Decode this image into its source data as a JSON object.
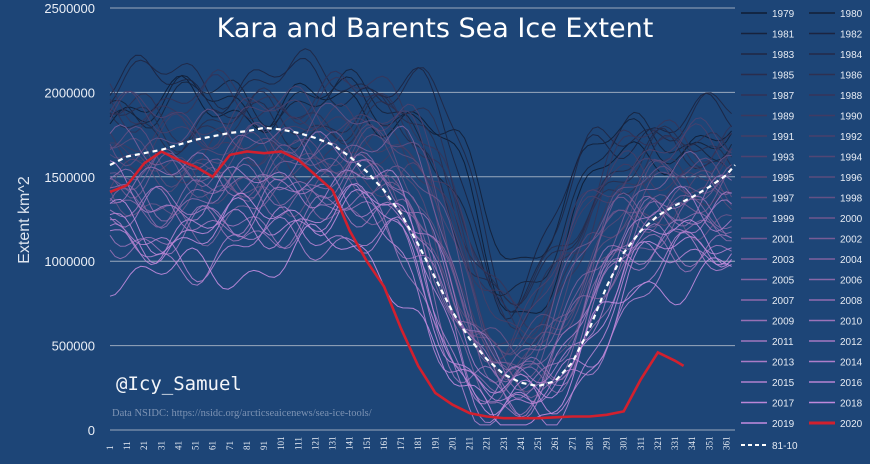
{
  "chart_data": {
    "type": "line",
    "title": "Kara and Barents Sea Ice Extent",
    "ylabel": "Extent km^2",
    "xlabel": "",
    "ylim": [
      0,
      2500000
    ],
    "yticks": [
      "0",
      "500000",
      "1000000",
      "1500000",
      "2000000",
      "2500000"
    ],
    "xticks": [
      "1",
      "11",
      "21",
      "31",
      "41",
      "51",
      "61",
      "71",
      "81",
      "91",
      "101",
      "111",
      "121",
      "131",
      "141",
      "151",
      "161",
      "171",
      "181",
      "191",
      "201",
      "211",
      "221",
      "231",
      "241",
      "251",
      "261",
      "271",
      "281",
      "291",
      "301",
      "311",
      "321",
      "331",
      "341",
      "351",
      "361"
    ],
    "xlim": [
      1,
      366
    ],
    "grid": "horizontal",
    "legend_position": "right",
    "watermark": "@Icy_Samuel",
    "source": "Data NSIDC: https://nsidc.org/arcticseaicenews/sea-ice-tools/",
    "legend": [
      "1979",
      "1980",
      "1981",
      "1982",
      "1983",
      "1984",
      "1985",
      "1986",
      "1987",
      "1988",
      "1989",
      "1990",
      "1991",
      "1992",
      "1993",
      "1994",
      "1995",
      "1996",
      "1997",
      "1998",
      "1999",
      "2000",
      "2001",
      "2002",
      "2003",
      "2004",
      "2005",
      "2006",
      "2007",
      "2008",
      "2009",
      "2010",
      "2011",
      "2012",
      "2013",
      "2014",
      "2015",
      "2016",
      "2017",
      "2018",
      "2019",
      "2020",
      "81-10"
    ],
    "highlighted_series": [
      {
        "name": "2020",
        "color": "#d2202e",
        "x": [
          1,
          11,
          21,
          31,
          41,
          51,
          61,
          71,
          81,
          91,
          101,
          111,
          121,
          131,
          141,
          151,
          161,
          171,
          181,
          191,
          201,
          211,
          221,
          231,
          241,
          251,
          261,
          271,
          281,
          291,
          301,
          311,
          321,
          331,
          336
        ],
        "values": [
          1410000,
          1450000,
          1580000,
          1650000,
          1600000,
          1560000,
          1500000,
          1630000,
          1650000,
          1640000,
          1650000,
          1600000,
          1510000,
          1420000,
          1180000,
          1000000,
          850000,
          600000,
          380000,
          220000,
          150000,
          100000,
          80000,
          70000,
          70000,
          70000,
          75000,
          80000,
          80000,
          90000,
          110000,
          300000,
          460000,
          410000,
          380000
        ]
      },
      {
        "name": "81-10",
        "color": "#ffffff",
        "style": "dashed",
        "x": [
          1,
          11,
          21,
          31,
          41,
          51,
          61,
          71,
          81,
          91,
          101,
          111,
          121,
          131,
          141,
          151,
          161,
          171,
          181,
          191,
          201,
          211,
          221,
          231,
          241,
          251,
          261,
          271,
          281,
          291,
          301,
          311,
          321,
          331,
          341,
          351,
          361,
          366
        ],
        "values": [
          1570000,
          1620000,
          1640000,
          1660000,
          1690000,
          1720000,
          1740000,
          1760000,
          1770000,
          1790000,
          1780000,
          1760000,
          1730000,
          1690000,
          1620000,
          1530000,
          1420000,
          1280000,
          1100000,
          900000,
          700000,
          540000,
          420000,
          330000,
          280000,
          260000,
          290000,
          400000,
          600000,
          850000,
          1050000,
          1180000,
          1270000,
          1330000,
          1380000,
          1440000,
          1510000,
          1570000
        ]
      }
    ]
  },
  "colors": {
    "background": "#1d4577",
    "grid": "#9aa9bd",
    "highlight_2020": "#d2202e",
    "mean_1981_2010": "#ffffff",
    "recent_years": "#c48ce0",
    "early_years": "#0e1c33"
  }
}
